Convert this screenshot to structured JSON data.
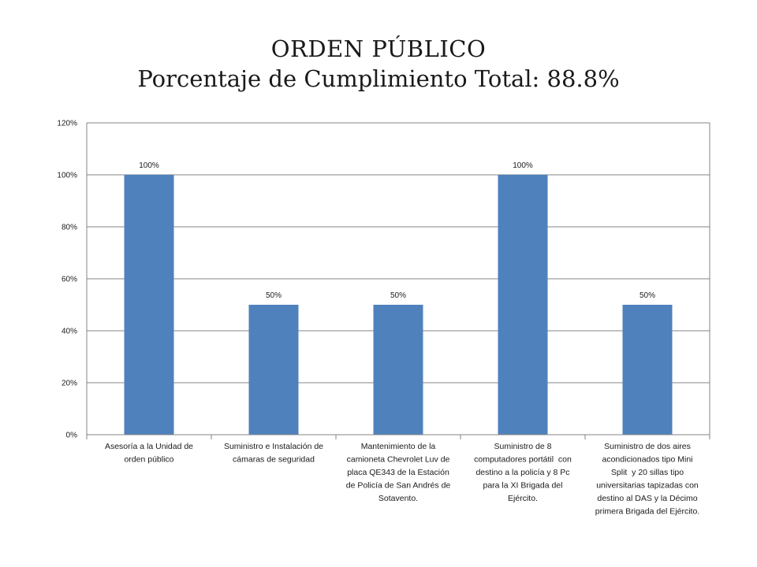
{
  "title": {
    "main": "ORDEN PÚBLICO",
    "sub": "Porcentaje de Cumplimiento Total: 88.8%"
  },
  "chart_data": {
    "type": "bar",
    "categories": [
      "Asesoría a la Unidad de orden público",
      "Suministro e Instalación de cámaras de seguridad",
      "Mantenimiento de la camioneta Chevrolet Luv de placa QE343 de la Estación de Policía de San Andrés de Sotavento.",
      "Suministro de 8 computadores portátil con destino a la policía y 8 Pc para la XI Brigada del Ejército.",
      "Suministro de dos aires acondicionados tipo Mini Split y 20 sillas tipo universitarias tapizadas con destino al DAS y la Décimo primera Brigada del Ejército."
    ],
    "category_lines": [
      [
        "Asesoría a la Unidad de",
        "orden público"
      ],
      [
        "Suministro e Instalación de",
        "cámaras de seguridad"
      ],
      [
        "Mantenimiento de la",
        "camioneta Chevrolet Luv de",
        "placa QE343 de la Estación",
        "de Policía de San Andrés de",
        "Sotavento."
      ],
      [
        "Suministro de 8",
        "computadores portátil  con",
        "destino a la policía y 8 Pc",
        "para la XI Brigada del",
        "Ejército."
      ],
      [
        "Suministro de dos aires",
        "acondicionados tipo Mini",
        "Split  y 20 sillas tipo",
        "universitarias tapizadas con",
        "destino al DAS y la Décimo",
        "primera Brigada del Ejército."
      ]
    ],
    "values": [
      1.0,
      0.5,
      0.5,
      1.0,
      0.5
    ],
    "data_labels": [
      "100%",
      "50%",
      "50%",
      "100%",
      "50%"
    ],
    "yticks": [
      "0%",
      "20%",
      "40%",
      "60%",
      "80%",
      "100%",
      "120%"
    ],
    "ylim": [
      0,
      1.2
    ],
    "grid": true,
    "legend": "none",
    "bar_color": "#4f81bd",
    "grid_color": "#868686"
  }
}
